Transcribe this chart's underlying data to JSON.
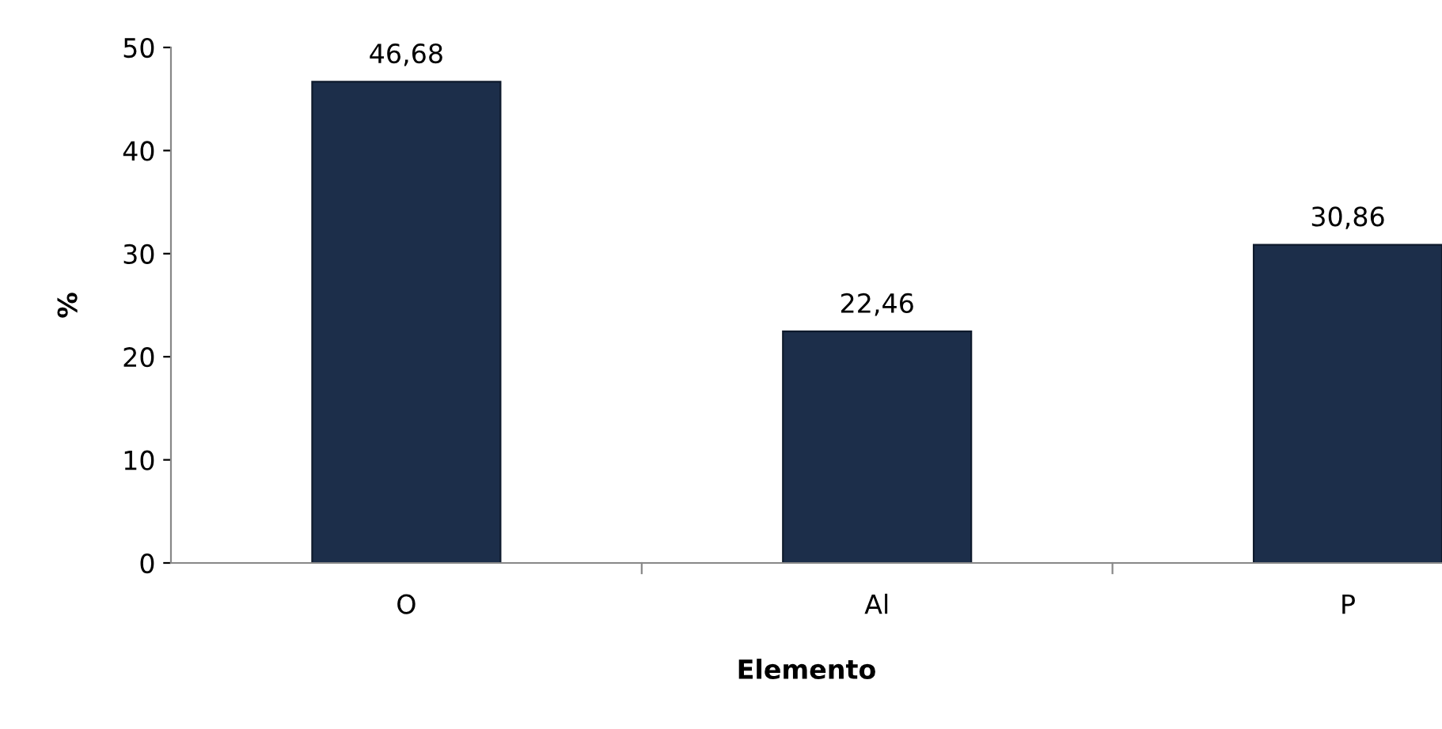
{
  "chart_data": {
    "type": "bar",
    "xlabel": "Elemento",
    "ylabel": "%",
    "categories": [
      "O",
      "Al",
      "P"
    ],
    "values": [
      46.68,
      22.46,
      30.86
    ],
    "value_labels": [
      "46,68",
      "22,46",
      "30,86"
    ],
    "color": "#1c2e4a",
    "ylim": [
      0,
      50
    ],
    "yticks": [
      0,
      10,
      20,
      30,
      40,
      50
    ],
    "grid": false,
    "legend": false
  }
}
